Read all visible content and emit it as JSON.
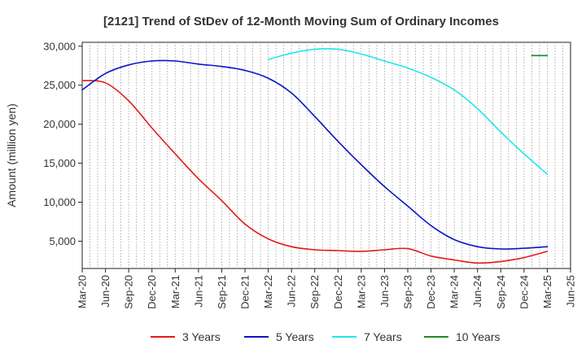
{
  "chart_data": {
    "type": "line",
    "title": "[2121]  Trend of StDev of 12-Month Moving Sum of Ordinary Incomes",
    "xlabel": "",
    "ylabel": "Amount (million yen)",
    "ylim": [
      1500,
      30500
    ],
    "yticks": [
      5000,
      10000,
      15000,
      20000,
      25000,
      30000
    ],
    "ytick_labels": [
      "5,000",
      "10,000",
      "15,000",
      "20,000",
      "25,000",
      "30,000"
    ],
    "xticks": [
      "2020-03",
      "2020-06",
      "2020-09",
      "2020-12",
      "2021-03",
      "2021-06",
      "2021-09",
      "2021-12",
      "2022-03",
      "2022-06",
      "2022-09",
      "2022-12",
      "2023-03",
      "2023-06",
      "2023-09",
      "2023-12",
      "2024-03",
      "2024-06",
      "2024-09",
      "2024-12",
      "2025-03",
      "2025-06"
    ],
    "xtick_labels": [
      "Mar-20",
      "Jun-20",
      "Sep-20",
      "Dec-20",
      "Mar-21",
      "Jun-21",
      "Sep-21",
      "Dec-21",
      "Mar-22",
      "Jun-22",
      "Sep-22",
      "Dec-22",
      "Mar-23",
      "Jun-23",
      "Sep-23",
      "Dec-23",
      "Mar-24",
      "Jun-24",
      "Sep-24",
      "Dec-24",
      "Mar-25",
      "Jun-25"
    ],
    "grid": "vertical-dotted",
    "legend_position": "bottom",
    "series": [
      {
        "name": "3 Years",
        "color": "#e31a1c",
        "points": [
          [
            "2020-03",
            25600
          ],
          [
            "2020-06",
            25300
          ],
          [
            "2020-09",
            23000
          ],
          [
            "2020-12",
            19500
          ],
          [
            "2021-03",
            16200
          ],
          [
            "2021-06",
            13000
          ],
          [
            "2021-09",
            10200
          ],
          [
            "2021-12",
            7200
          ],
          [
            "2022-03",
            5300
          ],
          [
            "2022-06",
            4300
          ],
          [
            "2022-09",
            3900
          ],
          [
            "2022-12",
            3800
          ],
          [
            "2023-03",
            3700
          ],
          [
            "2023-06",
            3900
          ],
          [
            "2023-09",
            4050
          ],
          [
            "2023-12",
            3100
          ],
          [
            "2024-03",
            2600
          ],
          [
            "2024-06",
            2200
          ],
          [
            "2024-09",
            2400
          ],
          [
            "2024-12",
            2900
          ],
          [
            "2025-03",
            3700
          ]
        ]
      },
      {
        "name": "5 Years",
        "color": "#0a14c8",
        "points": [
          [
            "2020-03",
            24400
          ],
          [
            "2020-06",
            26500
          ],
          [
            "2020-09",
            27600
          ],
          [
            "2020-12",
            28100
          ],
          [
            "2021-03",
            28100
          ],
          [
            "2021-06",
            27700
          ],
          [
            "2021-09",
            27400
          ],
          [
            "2021-12",
            26900
          ],
          [
            "2022-03",
            25900
          ],
          [
            "2022-06",
            24000
          ],
          [
            "2022-09",
            21000
          ],
          [
            "2022-12",
            17800
          ],
          [
            "2023-03",
            14800
          ],
          [
            "2023-06",
            12000
          ],
          [
            "2023-09",
            9500
          ],
          [
            "2023-12",
            7000
          ],
          [
            "2024-03",
            5200
          ],
          [
            "2024-06",
            4300
          ],
          [
            "2024-09",
            4000
          ],
          [
            "2024-12",
            4100
          ],
          [
            "2025-03",
            4300
          ]
        ]
      },
      {
        "name": "7 Years",
        "color": "#22e6e6",
        "points": [
          [
            "2022-03",
            28300
          ],
          [
            "2022-06",
            29100
          ],
          [
            "2022-09",
            29600
          ],
          [
            "2022-12",
            29600
          ],
          [
            "2023-03",
            29000
          ],
          [
            "2023-06",
            28100
          ],
          [
            "2023-09",
            27200
          ],
          [
            "2023-12",
            26000
          ],
          [
            "2024-03",
            24400
          ],
          [
            "2024-06",
            22000
          ],
          [
            "2024-09",
            19000
          ],
          [
            "2024-12",
            16200
          ],
          [
            "2025-03",
            13600
          ]
        ]
      },
      {
        "name": "10 Years",
        "color": "#1e8c1e",
        "points": [
          [
            "2025-01",
            28800
          ],
          [
            "2025-03",
            28800
          ]
        ]
      }
    ]
  }
}
